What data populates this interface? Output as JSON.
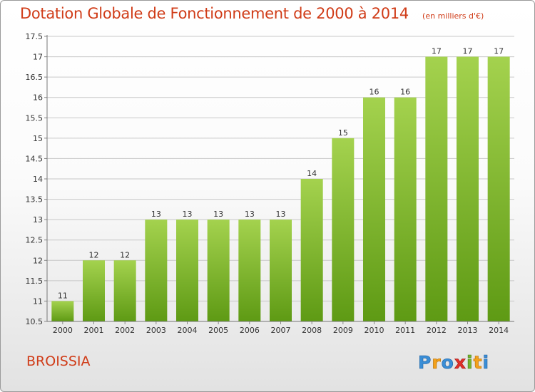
{
  "title": "Dotation Globale de Fonctionnement de 2000 à 2014",
  "unit": "(en milliers d'€)",
  "commune": "BROISSIA",
  "logo_text": "Proxiti",
  "colors": {
    "title": "#d03c18",
    "bar_light": "#a4d24e",
    "bar_dark": "#5e9a14",
    "grid": "#c8c8c8",
    "axis_text": "#333333"
  },
  "chart_data": {
    "type": "bar",
    "title": "Dotation Globale de Fonctionnement de 2000 à 2014",
    "subtitle": "(en milliers d'€)",
    "categories": [
      "2000",
      "2001",
      "2002",
      "2003",
      "2004",
      "2005",
      "2006",
      "2007",
      "2008",
      "2009",
      "2010",
      "2011",
      "2012",
      "2013",
      "2014"
    ],
    "values": [
      11,
      12,
      12,
      13,
      13,
      13,
      13,
      13,
      14,
      15,
      16,
      16,
      17,
      17,
      17
    ],
    "data_labels": [
      "11",
      "12",
      "12",
      "13",
      "13",
      "13",
      "13",
      "13",
      "14",
      "15",
      "16",
      "16",
      "17",
      "17",
      "17"
    ],
    "ylim": [
      10.5,
      17.5
    ],
    "yticks": [
      10.5,
      11,
      11.5,
      12,
      12.5,
      13,
      13.5,
      14,
      14.5,
      15,
      15.5,
      16,
      16.5,
      17,
      17.5
    ],
    "ytick_labels": [
      "10.5",
      "11",
      "11.5",
      "12",
      "12.5",
      "13",
      "13.5",
      "14",
      "14.5",
      "15",
      "15.5",
      "16",
      "16.5",
      "17",
      "17.5"
    ],
    "grid": true,
    "xlabel": "",
    "ylabel": ""
  }
}
